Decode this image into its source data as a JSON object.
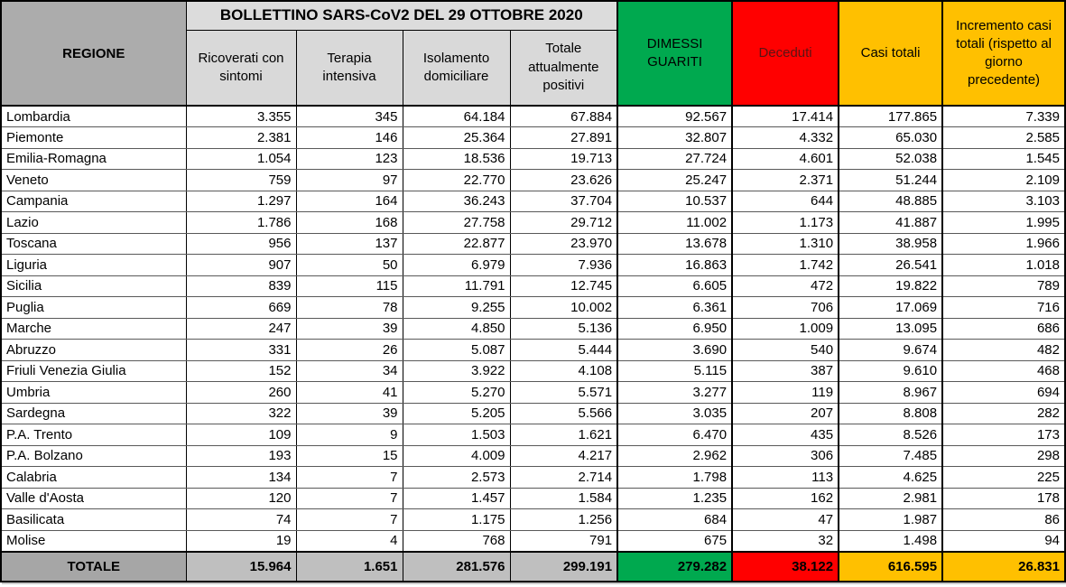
{
  "chart_data": {
    "type": "table",
    "title": "BOLLETTINO SARS-CoV2 DEL 29 OTTOBRE 2020",
    "region_header": "REGIONE",
    "value_columns": [
      "Ricoverati con sintomi",
      "Terapia intensiva",
      "Isolamento domiciliare",
      "Totale attualmente positivi",
      "DIMESSI GUARITI",
      "Deceduti",
      "Casi totali",
      "Incremento casi totali (rispetto al giorno precedente)"
    ],
    "rows": [
      {
        "region": "Lombardia",
        "values": [
          "3.355",
          "345",
          "64.184",
          "67.884",
          "92.567",
          "17.414",
          "177.865",
          "7.339"
        ]
      },
      {
        "region": "Piemonte",
        "values": [
          "2.381",
          "146",
          "25.364",
          "27.891",
          "32.807",
          "4.332",
          "65.030",
          "2.585"
        ]
      },
      {
        "region": "Emilia-Romagna",
        "values": [
          "1.054",
          "123",
          "18.536",
          "19.713",
          "27.724",
          "4.601",
          "52.038",
          "1.545"
        ]
      },
      {
        "region": "Veneto",
        "values": [
          "759",
          "97",
          "22.770",
          "23.626",
          "25.247",
          "2.371",
          "51.244",
          "2.109"
        ]
      },
      {
        "region": "Campania",
        "values": [
          "1.297",
          "164",
          "36.243",
          "37.704",
          "10.537",
          "644",
          "48.885",
          "3.103"
        ]
      },
      {
        "region": "Lazio",
        "values": [
          "1.786",
          "168",
          "27.758",
          "29.712",
          "11.002",
          "1.173",
          "41.887",
          "1.995"
        ]
      },
      {
        "region": "Toscana",
        "values": [
          "956",
          "137",
          "22.877",
          "23.970",
          "13.678",
          "1.310",
          "38.958",
          "1.966"
        ]
      },
      {
        "region": "Liguria",
        "values": [
          "907",
          "50",
          "6.979",
          "7.936",
          "16.863",
          "1.742",
          "26.541",
          "1.018"
        ]
      },
      {
        "region": "Sicilia",
        "values": [
          "839",
          "115",
          "11.791",
          "12.745",
          "6.605",
          "472",
          "19.822",
          "789"
        ]
      },
      {
        "region": "Puglia",
        "values": [
          "669",
          "78",
          "9.255",
          "10.002",
          "6.361",
          "706",
          "17.069",
          "716"
        ]
      },
      {
        "region": "Marche",
        "values": [
          "247",
          "39",
          "4.850",
          "5.136",
          "6.950",
          "1.009",
          "13.095",
          "686"
        ]
      },
      {
        "region": "Abruzzo",
        "values": [
          "331",
          "26",
          "5.087",
          "5.444",
          "3.690",
          "540",
          "9.674",
          "482"
        ]
      },
      {
        "region": "Friuli Venezia Giulia",
        "values": [
          "152",
          "34",
          "3.922",
          "4.108",
          "5.115",
          "387",
          "9.610",
          "468"
        ]
      },
      {
        "region": "Umbria",
        "values": [
          "260",
          "41",
          "5.270",
          "5.571",
          "3.277",
          "119",
          "8.967",
          "694"
        ]
      },
      {
        "region": "Sardegna",
        "values": [
          "322",
          "39",
          "5.205",
          "5.566",
          "3.035",
          "207",
          "8.808",
          "282"
        ]
      },
      {
        "region": "P.A. Trento",
        "values": [
          "109",
          "9",
          "1.503",
          "1.621",
          "6.470",
          "435",
          "8.526",
          "173"
        ]
      },
      {
        "region": "P.A. Bolzano",
        "values": [
          "193",
          "15",
          "4.009",
          "4.217",
          "2.962",
          "306",
          "7.485",
          "298"
        ]
      },
      {
        "region": "Calabria",
        "values": [
          "134",
          "7",
          "2.573",
          "2.714",
          "1.798",
          "113",
          "4.625",
          "225"
        ]
      },
      {
        "region": "Valle d'Aosta",
        "values": [
          "120",
          "7",
          "1.457",
          "1.584",
          "1.235",
          "162",
          "2.981",
          "178"
        ]
      },
      {
        "region": "Basilicata",
        "values": [
          "74",
          "7",
          "1.175",
          "1.256",
          "684",
          "47",
          "1.987",
          "86"
        ]
      },
      {
        "region": "Molise",
        "values": [
          "19",
          "4",
          "768",
          "791",
          "675",
          "32",
          "1.498",
          "94"
        ]
      }
    ],
    "total": {
      "label": "TOTALE",
      "values": [
        "15.964",
        "1.651",
        "281.576",
        "299.191",
        "279.282",
        "38.122",
        "616.595",
        "26.831"
      ]
    }
  },
  "colors": {
    "green": "#00a94f",
    "red": "#ff0000",
    "gold": "#ffc000",
    "header_gray": "#acacac",
    "subheader_gray": "#d9d9d9",
    "total_label_gray": "#a6a6a6",
    "total_value_gray": "#bfbfbf",
    "deceduti_text": "#5a1414"
  }
}
